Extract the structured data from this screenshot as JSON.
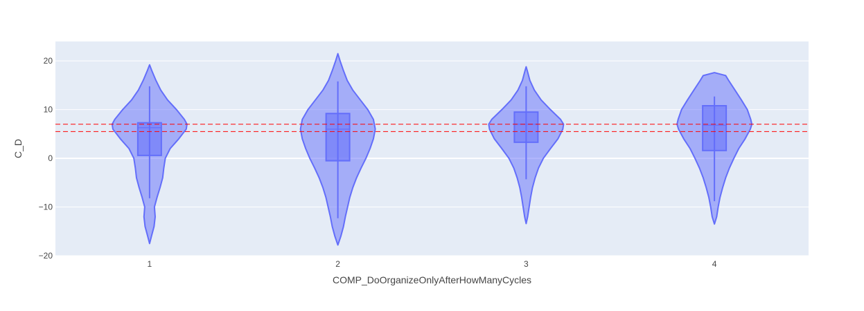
{
  "chart_data": {
    "type": "violin",
    "xlabel": "COMP_DoOrganizeOnlyAfterHowManyCycles",
    "ylabel": "C_D",
    "categories": [
      "1",
      "2",
      "3",
      "4"
    ],
    "ylim": [
      -20,
      24
    ],
    "yticks": [
      -20,
      -10,
      0,
      10,
      20
    ],
    "grid": true,
    "colors": {
      "violin_fill": "#636efa",
      "violin_line": "#636efa",
      "plot_bg": "#e5ecf6",
      "reference_line": "#ff0000"
    },
    "reference_lines": [
      7.0,
      5.5
    ],
    "violins": [
      {
        "category": "1",
        "min": -17.5,
        "max": 19.2,
        "q1": 0.6,
        "median": 6.3,
        "q3": 7.3,
        "whisker_low": -8.2,
        "whisker_high": 14.8,
        "profile": [
          [
            -17.5,
            0
          ],
          [
            -16,
            0.05
          ],
          [
            -14,
            0.12
          ],
          [
            -12,
            0.15
          ],
          [
            -10,
            0.13
          ],
          [
            -8,
            0.2
          ],
          [
            -6,
            0.28
          ],
          [
            -4,
            0.35
          ],
          [
            -2,
            0.38
          ],
          [
            0,
            0.42
          ],
          [
            2,
            0.55
          ],
          [
            4,
            0.78
          ],
          [
            6,
            0.98
          ],
          [
            7,
            1.0
          ],
          [
            8,
            0.93
          ],
          [
            10,
            0.72
          ],
          [
            12,
            0.48
          ],
          [
            14,
            0.3
          ],
          [
            16,
            0.17
          ],
          [
            18,
            0.06
          ],
          [
            19.2,
            0
          ]
        ]
      },
      {
        "category": "2",
        "min": -17.8,
        "max": 21.5,
        "q1": -0.5,
        "median": 6.0,
        "q3": 9.2,
        "whisker_low": -12.3,
        "whisker_high": 15.8,
        "profile": [
          [
            -17.8,
            0
          ],
          [
            -16,
            0.08
          ],
          [
            -14,
            0.15
          ],
          [
            -12,
            0.2
          ],
          [
            -10,
            0.26
          ],
          [
            -8,
            0.32
          ],
          [
            -6,
            0.4
          ],
          [
            -4,
            0.5
          ],
          [
            -2,
            0.62
          ],
          [
            0,
            0.75
          ],
          [
            2,
            0.86
          ],
          [
            4,
            0.95
          ],
          [
            6,
            1.0
          ],
          [
            8,
            0.95
          ],
          [
            10,
            0.8
          ],
          [
            12,
            0.6
          ],
          [
            14,
            0.4
          ],
          [
            16,
            0.25
          ],
          [
            18,
            0.15
          ],
          [
            20,
            0.06
          ],
          [
            21.5,
            0
          ]
        ]
      },
      {
        "category": "3",
        "min": -13.4,
        "max": 18.8,
        "q1": 3.3,
        "median": 7.0,
        "q3": 9.5,
        "whisker_low": -4.3,
        "whisker_high": 14.8,
        "profile": [
          [
            -13.4,
            0
          ],
          [
            -12,
            0.04
          ],
          [
            -10,
            0.08
          ],
          [
            -8,
            0.12
          ],
          [
            -6,
            0.17
          ],
          [
            -4,
            0.24
          ],
          [
            -2,
            0.33
          ],
          [
            0,
            0.46
          ],
          [
            2,
            0.65
          ],
          [
            4,
            0.85
          ],
          [
            6,
            0.98
          ],
          [
            7,
            1.0
          ],
          [
            8,
            0.92
          ],
          [
            10,
            0.65
          ],
          [
            12,
            0.4
          ],
          [
            14,
            0.22
          ],
          [
            16,
            0.1
          ],
          [
            18,
            0.03
          ],
          [
            18.8,
            0
          ]
        ]
      },
      {
        "category": "4",
        "min": -13.5,
        "max": 17.6,
        "q1": 1.6,
        "median": 6.8,
        "q3": 10.8,
        "whisker_low": -8.8,
        "whisker_high": 12.7,
        "profile": [
          [
            -13.5,
            0
          ],
          [
            -12,
            0.06
          ],
          [
            -10,
            0.1
          ],
          [
            -8,
            0.15
          ],
          [
            -6,
            0.22
          ],
          [
            -4,
            0.3
          ],
          [
            -2,
            0.4
          ],
          [
            0,
            0.52
          ],
          [
            2,
            0.65
          ],
          [
            4,
            0.82
          ],
          [
            6,
            0.96
          ],
          [
            7,
            1.0
          ],
          [
            8,
            0.97
          ],
          [
            10,
            0.88
          ],
          [
            12,
            0.72
          ],
          [
            14,
            0.55
          ],
          [
            16,
            0.38
          ],
          [
            17,
            0.3
          ],
          [
            17.6,
            0
          ]
        ]
      }
    ]
  }
}
